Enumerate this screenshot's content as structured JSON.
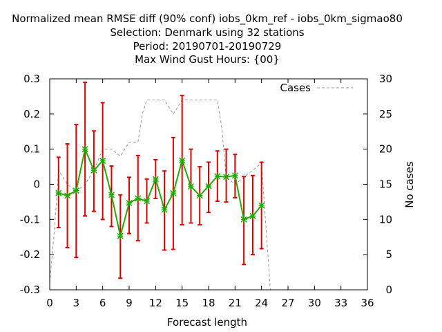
{
  "chart_data": {
    "type": "line",
    "title_lines": [
      "Normalized mean RMSE diff (90% conf) iobs_0km_ref - iobs_0km_sigmao80",
      "Selection: Denmark using    32 stations",
      "Period: 20190701-20190729",
      "Max Wind Gust   Hours: {00}"
    ],
    "xlabel": "Forecast length",
    "ylabel": "",
    "y2label": "No cases",
    "xlim": [
      0,
      36
    ],
    "ylim": [
      -0.3,
      0.3
    ],
    "y2lim": [
      0,
      30
    ],
    "x_ticks": [
      "0",
      "3",
      "6",
      "9",
      "12",
      "15",
      "18",
      "21",
      "24",
      "27",
      "30",
      "33",
      "36"
    ],
    "y_ticks": [
      "0.3",
      "0.2",
      "0.1",
      "0",
      "-0.1",
      "-0.2",
      "-0.3"
    ],
    "y2_ticks": [
      "30",
      "25",
      "20",
      "15",
      "10",
      "5",
      "0"
    ],
    "grid": false,
    "legend": {
      "placement": "top-right",
      "entries": [
        "Cases"
      ]
    },
    "colors": {
      "diff": "#22aa00",
      "error": "#dd0000",
      "marker": "#22aa00",
      "cases": "#999999"
    },
    "series": [
      {
        "type": "errorbar-line",
        "x": [
          1,
          2,
          3,
          4,
          5,
          6,
          7,
          8,
          9,
          10,
          11,
          12,
          13,
          14,
          15,
          16,
          17,
          18,
          19,
          20,
          21,
          22,
          23,
          24
        ],
        "values": [
          -0.025,
          -0.032,
          -0.018,
          0.1,
          0.04,
          0.067,
          -0.03,
          -0.147,
          -0.053,
          -0.04,
          -0.048,
          0.015,
          -0.072,
          -0.025,
          0.068,
          -0.006,
          -0.032,
          -0.005,
          0.023,
          0.021,
          0.025,
          -0.1,
          -0.09,
          -0.06
        ],
        "lower": [
          -0.123,
          -0.18,
          -0.208,
          -0.09,
          -0.077,
          -0.1,
          -0.12,
          -0.267,
          -0.14,
          -0.16,
          -0.11,
          -0.04,
          -0.187,
          -0.185,
          -0.115,
          -0.11,
          -0.115,
          -0.08,
          -0.048,
          -0.05,
          -0.038,
          -0.228,
          -0.2,
          -0.183
        ],
        "upper": [
          0.077,
          0.115,
          0.17,
          0.29,
          0.152,
          0.232,
          0.052,
          -0.03,
          0.02,
          0.082,
          0.015,
          0.07,
          0.038,
          0.133,
          0.253,
          0.1,
          0.05,
          0.063,
          0.095,
          0.1,
          0.085,
          0.022,
          0.025,
          0.063
        ]
      },
      {
        "name": "Cases",
        "type": "cases",
        "axis": "y2",
        "x": [
          0,
          0.5,
          1,
          1.5,
          2,
          3,
          4,
          5,
          6,
          7,
          7.5,
          8,
          8.5,
          9,
          10,
          10.5,
          11,
          12,
          13,
          13.5,
          14,
          14.5,
          15,
          16,
          17,
          18,
          19,
          19.5,
          20,
          21,
          22,
          23,
          24,
          24.5,
          25,
          26,
          27,
          28,
          30,
          33,
          36
        ],
        "values": [
          1,
          8,
          17,
          16,
          15,
          14,
          15,
          17,
          20,
          20,
          19.5,
          19,
          20,
          21,
          21,
          25,
          27,
          27,
          27,
          26,
          25,
          26,
          27,
          27,
          27,
          27,
          27,
          23,
          16,
          15,
          16,
          17,
          18,
          9,
          0,
          0,
          0,
          0,
          0,
          0,
          0
        ]
      }
    ]
  }
}
